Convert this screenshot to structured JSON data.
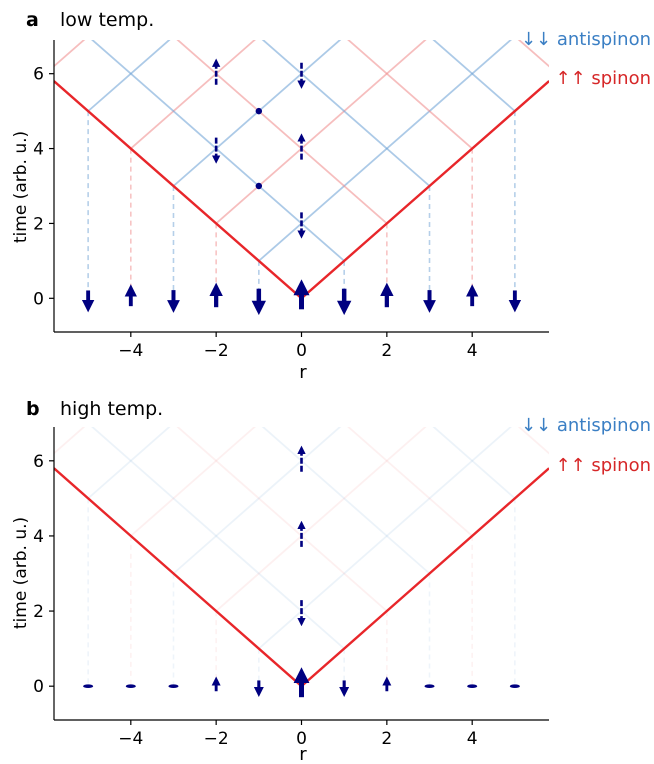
{
  "chart_data": [
    {
      "type": "line",
      "panel_label": "a",
      "title": "low temp.",
      "xlabel": "r",
      "ylabel": "time (arb. u.)",
      "xlim": [
        -5.8,
        5.8
      ],
      "ylim": [
        -0.9,
        6.9
      ],
      "xticks": [
        -4,
        -2,
        0,
        2,
        4
      ],
      "yticks": [
        0,
        2,
        4,
        6
      ],
      "xtick_labels": [
        "−4",
        "−2",
        "0",
        "2",
        "4"
      ],
      "ytick_labels": [
        "0",
        "2",
        "4",
        "6"
      ],
      "legend": [
        {
          "label": "↓↓ antispinon",
          "color": "#3b7fc4"
        },
        {
          "label": "↑↑ spinon",
          "color": "#d62728"
        }
      ],
      "light_cone_color": "#e8262a",
      "site_spins": [
        {
          "r": -5,
          "dir": "down",
          "size": 0.55
        },
        {
          "r": -4,
          "dir": "up",
          "size": 0.55
        },
        {
          "r": -3,
          "dir": "down",
          "size": 0.6
        },
        {
          "r": -2,
          "dir": "up",
          "size": 0.7
        },
        {
          "r": -1,
          "dir": "down",
          "size": 0.8
        },
        {
          "r": 0,
          "dir": "up",
          "size": 1.0
        },
        {
          "r": 1,
          "dir": "down",
          "size": 0.8
        },
        {
          "r": 2,
          "dir": "up",
          "size": 0.7
        },
        {
          "r": 3,
          "dir": "down",
          "size": 0.6
        },
        {
          "r": 4,
          "dir": "up",
          "size": 0.55
        },
        {
          "r": 5,
          "dir": "down",
          "size": 0.55
        }
      ],
      "center_spins": [
        {
          "r": 0,
          "t": 2,
          "dir": "down"
        },
        {
          "r": 0,
          "t": 4,
          "dir": "up"
        },
        {
          "r": 0,
          "t": 6,
          "dir": "down"
        },
        {
          "r": -2,
          "t": 4,
          "dir": "down"
        },
        {
          "r": -2,
          "t": 6,
          "dir": "up"
        }
      ],
      "dots": [
        {
          "r": -1,
          "t": 3
        },
        {
          "r": -1,
          "t": 5
        }
      ],
      "grid_opacity": 0.55
    },
    {
      "type": "line",
      "panel_label": "b",
      "title": "high temp.",
      "xlabel": "r",
      "ylabel": "time (arb. u.)",
      "xlim": [
        -5.8,
        5.8
      ],
      "ylim": [
        -0.9,
        6.9
      ],
      "xticks": [
        -4,
        -2,
        0,
        2,
        4
      ],
      "yticks": [
        0,
        2,
        4,
        6
      ],
      "xtick_labels": [
        "−4",
        "−2",
        "0",
        "2",
        "4"
      ],
      "ytick_labels": [
        "0",
        "2",
        "4",
        "6"
      ],
      "legend": [
        {
          "label": "↓↓ antispinon",
          "color": "#3b7fc4"
        },
        {
          "label": "↑↑ spinon",
          "color": "#d62728"
        }
      ],
      "light_cone_color": "#e8262a",
      "site_spins": [
        {
          "r": -5,
          "dir": "flat",
          "size": 0.1
        },
        {
          "r": -4,
          "dir": "flat",
          "size": 0.1
        },
        {
          "r": -3,
          "dir": "flat",
          "size": 0.12
        },
        {
          "r": -2,
          "dir": "up",
          "size": 0.15
        },
        {
          "r": -1,
          "dir": "down",
          "size": 0.25
        },
        {
          "r": 0,
          "dir": "up",
          "size": 1.0
        },
        {
          "r": 1,
          "dir": "down",
          "size": 0.25
        },
        {
          "r": 2,
          "dir": "up",
          "size": 0.15
        },
        {
          "r": 3,
          "dir": "flat",
          "size": 0.12
        },
        {
          "r": 4,
          "dir": "flat",
          "size": 0.1
        },
        {
          "r": 5,
          "dir": "flat",
          "size": 0.1
        }
      ],
      "center_spins": [
        {
          "r": 0,
          "t": 2,
          "dir": "down"
        },
        {
          "r": 0,
          "t": 4,
          "dir": "up"
        },
        {
          "r": 0,
          "t": 6,
          "dir": "up"
        }
      ],
      "dots": [],
      "grid_opacity": 0.12
    }
  ]
}
